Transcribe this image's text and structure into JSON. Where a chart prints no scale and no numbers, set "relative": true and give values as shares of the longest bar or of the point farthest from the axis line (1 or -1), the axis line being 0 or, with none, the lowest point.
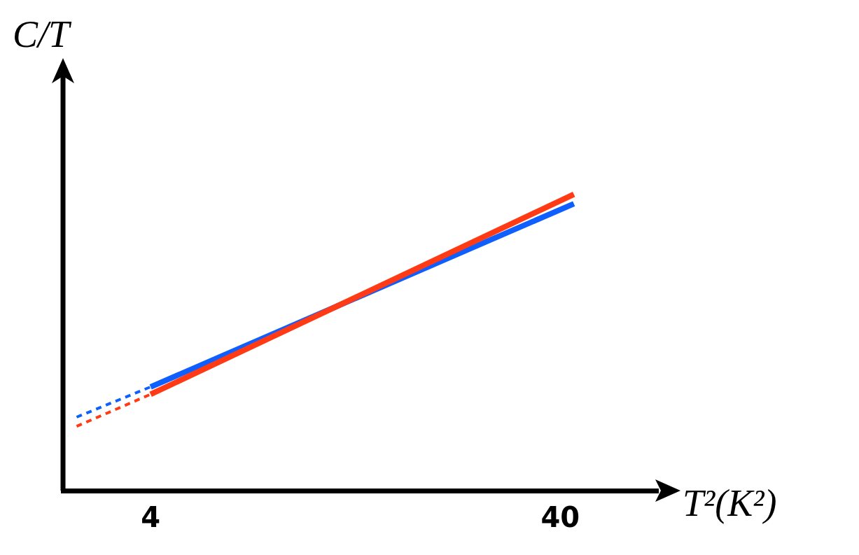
{
  "chart_data": {
    "type": "line",
    "relative": true,
    "xlabel": "T²(K²)",
    "ylabel": "C/T",
    "xlim": [
      -3.7,
      48.6
    ],
    "xticks": [
      4,
      40
    ],
    "grid": false,
    "legend": false,
    "marker": "none",
    "series": [
      {
        "type": "line",
        "color": "#0f5fff",
        "line_style": "dashed",
        "x": [
          -2.5,
          4
        ],
        "values": [
          0.248,
          0.35
        ]
      },
      {
        "type": "line",
        "color": "#ff3a14",
        "line_style": "dashed",
        "x": [
          -2.5,
          4
        ],
        "values": [
          0.217,
          0.325
        ]
      },
      {
        "type": "line",
        "color": "#ff3a14",
        "line_style": "solid",
        "x": [
          4,
          41.2
        ],
        "values": [
          0.325,
          1
        ]
      },
      {
        "type": "line",
        "color": "#0f5fff",
        "line_style": "solid",
        "x": [
          4,
          41.2
        ],
        "values": [
          0.35,
          0.968
        ]
      }
    ]
  }
}
